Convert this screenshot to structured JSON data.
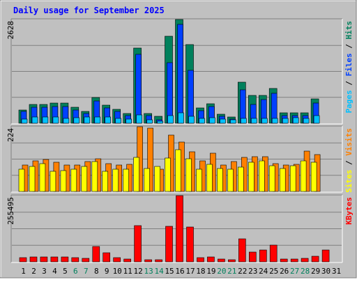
{
  "chart_data": {
    "type": "bar",
    "title": "Daily usage for September 2025",
    "categories": [
      "1",
      "2",
      "3",
      "4",
      "5",
      "6",
      "7",
      "8",
      "9",
      "10",
      "11",
      "12",
      "13",
      "14",
      "15",
      "16",
      "17",
      "18",
      "19",
      "20",
      "21",
      "22",
      "23",
      "24",
      "25",
      "26",
      "27",
      "28",
      "29",
      "30",
      "31"
    ],
    "weekend_days": [
      "6",
      "7",
      "13",
      "14",
      "20",
      "21",
      "27",
      "28"
    ],
    "panels": [
      {
        "id": "top",
        "ymax_label": "2628",
        "ylim": [
          0,
          2628
        ],
        "side_labels": [
          "Pages",
          "Files",
          "Hits"
        ],
        "series": [
          {
            "name": "Hits",
            "color": "#00805c",
            "values": [
              340,
              470,
              480,
              510,
              520,
              400,
              300,
              660,
              460,
              360,
              250,
              1900,
              240,
              170,
              2200,
              2628,
              1990,
              380,
              490,
              230,
              160,
              1040,
              710,
              700,
              880,
              270,
              270,
              270,
              610,
              0,
              0
            ]
          },
          {
            "name": "Files",
            "color": "#0040ff",
            "values": [
              300,
              400,
              400,
              430,
              430,
              330,
              240,
              560,
              380,
              300,
              200,
              1750,
              200,
              80,
              1540,
              2500,
              1340,
              310,
              420,
              170,
              110,
              840,
              470,
              600,
              760,
              200,
              200,
              190,
              510,
              0,
              0
            ]
          },
          {
            "name": "Pages",
            "color": "#00c0ff",
            "values": [
              110,
              150,
              150,
              160,
              130,
              140,
              150,
              160,
              150,
              130,
              110,
              210,
              90,
              60,
              200,
              260,
              170,
              130,
              140,
              100,
              80,
              130,
              130,
              130,
              130,
              130,
              140,
              130,
              190,
              0,
              0
            ]
          }
        ]
      },
      {
        "id": "middle",
        "ymax_label": "224",
        "ylim": [
          0,
          224
        ],
        "side_labels": [
          "Sites",
          "Visits"
        ],
        "series": [
          {
            "name": "Visits",
            "color": "#ff8000",
            "values": [
              92,
              105,
              110,
              100,
              92,
              92,
              104,
              114,
              96,
              92,
              94,
              224,
              220,
              78,
              194,
              171,
              138,
              107,
              133,
              92,
              104,
              118,
              120,
              120,
              97,
              92,
              94,
              140,
              127,
              0,
              0
            ]
          },
          {
            "name": "Sites",
            "color": "#ffff00",
            "values": [
              78,
              87,
              96,
              70,
              72,
              78,
              86,
              104,
              70,
              78,
              78,
              117,
              80,
              86,
              115,
              145,
              113,
              78,
              94,
              80,
              77,
              84,
              100,
              106,
              90,
              80,
              88,
              105,
              101,
              0,
              0
            ]
          }
        ]
      },
      {
        "id": "bottom",
        "ymax_label": "255495",
        "ylim": [
          0,
          255495
        ],
        "side_labels": [
          "KBytes"
        ],
        "series": [
          {
            "name": "KBytes",
            "color": "#ff0000",
            "values": [
              16000,
              18000,
              18000,
              20000,
              18000,
              16000,
              14000,
              60000,
              36000,
              17000,
              12000,
              140000,
              9000,
              9000,
              138000,
              255495,
              134000,
              16000,
              18000,
              12000,
              7000,
              90000,
              38000,
              46000,
              64000,
              12000,
              12000,
              14000,
              22000,
              46000,
              0
            ]
          }
        ]
      }
    ]
  }
}
